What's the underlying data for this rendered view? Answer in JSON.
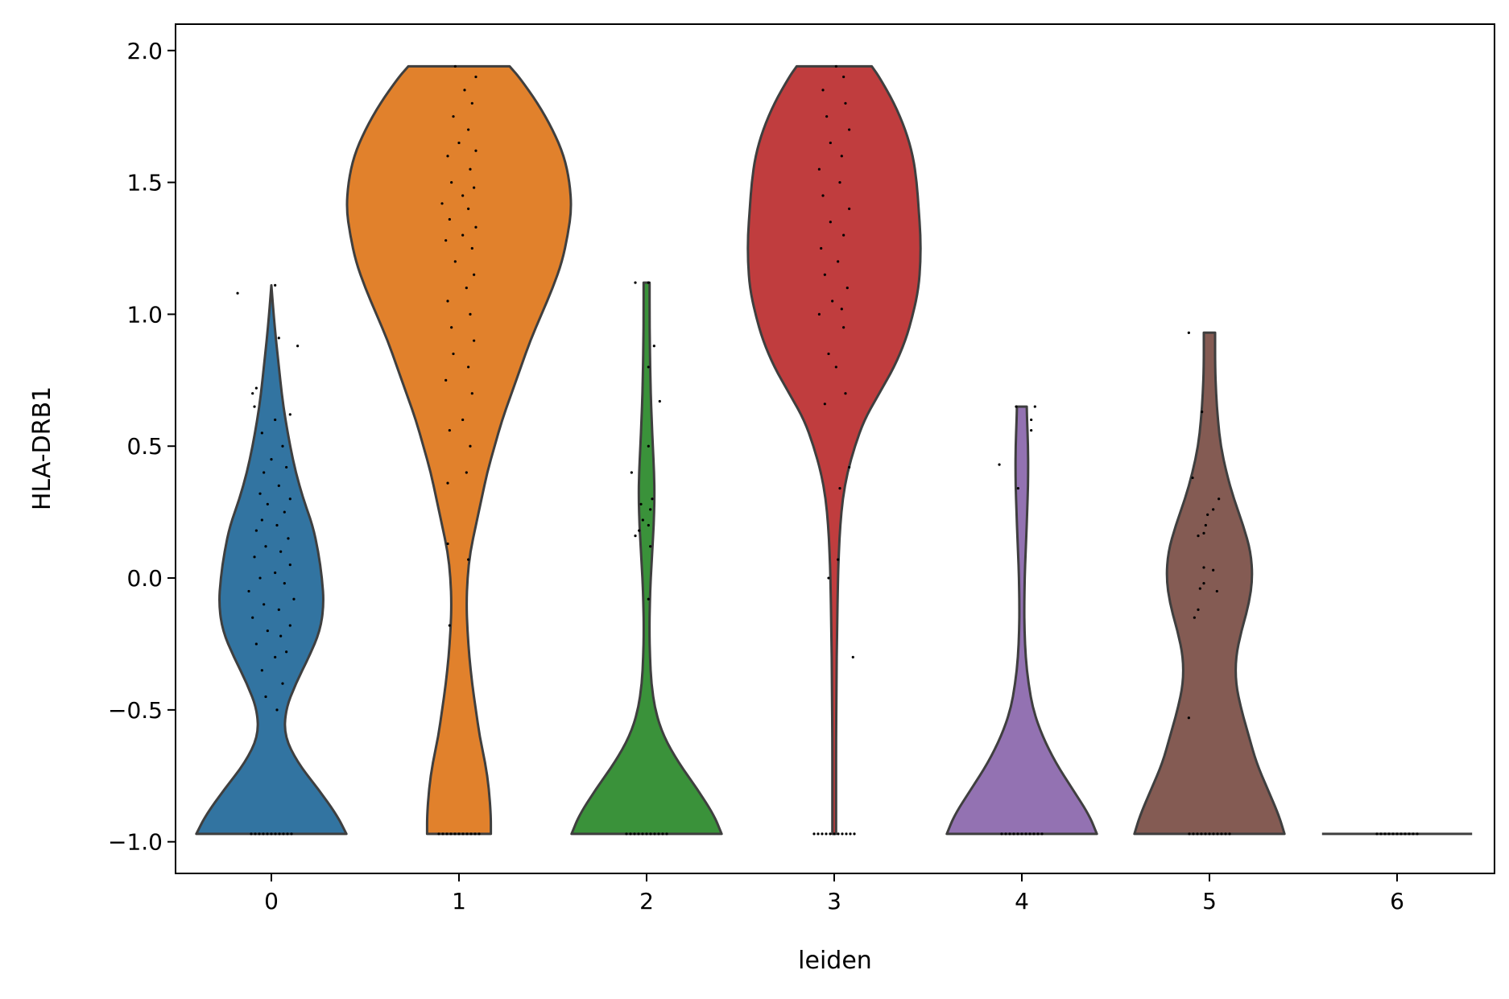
{
  "chart_data": {
    "type": "violin",
    "title": "",
    "xlabel": "leiden",
    "ylabel": "HLA-DRB1",
    "ylim": [
      -1.12,
      2.1
    ],
    "yticks": [
      2.0,
      1.5,
      1.0,
      0.5,
      0.0,
      -0.5,
      -1.0
    ],
    "ytick_labels": [
      "2.0",
      "1.5",
      "1.0",
      "0.5",
      "0.0",
      "−0.5",
      "−1.0"
    ],
    "categories": [
      "0",
      "1",
      "2",
      "3",
      "4",
      "5",
      "6"
    ],
    "grid": false,
    "series": [
      {
        "category": "0",
        "color": "#3274a1",
        "min": -0.97,
        "max": 1.11,
        "profile": [
          [
            -0.97,
            0.4
          ],
          [
            -0.9,
            0.35
          ],
          [
            -0.8,
            0.25
          ],
          [
            -0.7,
            0.14
          ],
          [
            -0.6,
            0.07
          ],
          [
            -0.5,
            0.075
          ],
          [
            -0.4,
            0.13
          ],
          [
            -0.3,
            0.2
          ],
          [
            -0.2,
            0.26
          ],
          [
            -0.1,
            0.28
          ],
          [
            0.0,
            0.27
          ],
          [
            0.1,
            0.25
          ],
          [
            0.2,
            0.22
          ],
          [
            0.3,
            0.17
          ],
          [
            0.4,
            0.13
          ],
          [
            0.5,
            0.1
          ],
          [
            0.6,
            0.075
          ],
          [
            0.7,
            0.055
          ],
          [
            0.8,
            0.04
          ],
          [
            0.9,
            0.025
          ],
          [
            1.0,
            0.012
          ],
          [
            1.11,
            0.0
          ]
        ],
        "points": [
          [
            -0.97,
            0.0
          ],
          [
            -0.5,
            0.03
          ],
          [
            -0.45,
            -0.03
          ],
          [
            -0.4,
            0.06
          ],
          [
            -0.35,
            -0.05
          ],
          [
            -0.3,
            0.02
          ],
          [
            -0.28,
            0.08
          ],
          [
            -0.25,
            -0.08
          ],
          [
            -0.22,
            0.05
          ],
          [
            -0.2,
            -0.02
          ],
          [
            -0.18,
            0.1
          ],
          [
            -0.15,
            -0.1
          ],
          [
            -0.12,
            0.04
          ],
          [
            -0.1,
            -0.04
          ],
          [
            -0.08,
            0.12
          ],
          [
            -0.05,
            -0.12
          ],
          [
            -0.02,
            0.07
          ],
          [
            0.0,
            -0.06
          ],
          [
            0.02,
            0.02
          ],
          [
            0.05,
            0.1
          ],
          [
            0.08,
            -0.09
          ],
          [
            0.1,
            0.05
          ],
          [
            0.12,
            -0.03
          ],
          [
            0.15,
            0.09
          ],
          [
            0.18,
            -0.08
          ],
          [
            0.2,
            0.03
          ],
          [
            0.22,
            -0.05
          ],
          [
            0.25,
            0.07
          ],
          [
            0.28,
            -0.02
          ],
          [
            0.3,
            0.1
          ],
          [
            0.32,
            -0.06
          ],
          [
            0.35,
            0.04
          ],
          [
            0.4,
            -0.04
          ],
          [
            0.42,
            0.08
          ],
          [
            0.45,
            0.0
          ],
          [
            0.5,
            0.06
          ],
          [
            0.55,
            -0.05
          ],
          [
            0.6,
            0.02
          ],
          [
            0.62,
            0.1
          ],
          [
            0.65,
            -0.09
          ],
          [
            0.7,
            -0.1
          ],
          [
            0.72,
            -0.08
          ],
          [
            0.88,
            0.14
          ],
          [
            0.91,
            0.04
          ],
          [
            1.08,
            -0.18
          ],
          [
            1.11,
            0.02
          ]
        ]
      },
      {
        "category": "1",
        "color": "#e1812c",
        "min": -0.97,
        "max": 1.94,
        "profile": [
          [
            -0.97,
            0.17
          ],
          [
            -0.9,
            0.17
          ],
          [
            -0.8,
            0.16
          ],
          [
            -0.7,
            0.14
          ],
          [
            -0.6,
            0.11
          ],
          [
            -0.5,
            0.09
          ],
          [
            -0.4,
            0.07
          ],
          [
            -0.3,
            0.055
          ],
          [
            -0.2,
            0.045
          ],
          [
            -0.1,
            0.04
          ],
          [
            0.0,
            0.045
          ],
          [
            0.1,
            0.06
          ],
          [
            0.2,
            0.09
          ],
          [
            0.3,
            0.12
          ],
          [
            0.4,
            0.15
          ],
          [
            0.5,
            0.19
          ],
          [
            0.6,
            0.23
          ],
          [
            0.7,
            0.28
          ],
          [
            0.8,
            0.33
          ],
          [
            0.9,
            0.38
          ],
          [
            1.0,
            0.44
          ],
          [
            1.1,
            0.5
          ],
          [
            1.2,
            0.55
          ],
          [
            1.3,
            0.58
          ],
          [
            1.4,
            0.6
          ],
          [
            1.5,
            0.59
          ],
          [
            1.6,
            0.56
          ],
          [
            1.7,
            0.5
          ],
          [
            1.8,
            0.42
          ],
          [
            1.9,
            0.32
          ],
          [
            1.94,
            0.27
          ]
        ],
        "points": [
          [
            -0.97,
            0.0
          ],
          [
            -0.18,
            -0.05
          ],
          [
            0.07,
            0.05
          ],
          [
            0.13,
            -0.06
          ],
          [
            0.36,
            -0.06
          ],
          [
            0.4,
            0.04
          ],
          [
            0.5,
            0.06
          ],
          [
            0.56,
            -0.05
          ],
          [
            0.6,
            0.02
          ],
          [
            0.7,
            0.07
          ],
          [
            0.75,
            -0.07
          ],
          [
            0.8,
            0.05
          ],
          [
            0.85,
            -0.03
          ],
          [
            0.9,
            0.08
          ],
          [
            0.95,
            -0.04
          ],
          [
            1.0,
            0.06
          ],
          [
            1.05,
            -0.06
          ],
          [
            1.1,
            0.04
          ],
          [
            1.15,
            0.08
          ],
          [
            1.2,
            -0.02
          ],
          [
            1.25,
            0.07
          ],
          [
            1.28,
            -0.07
          ],
          [
            1.3,
            0.02
          ],
          [
            1.33,
            0.09
          ],
          [
            1.36,
            -0.05
          ],
          [
            1.4,
            0.05
          ],
          [
            1.42,
            -0.09
          ],
          [
            1.45,
            0.02
          ],
          [
            1.48,
            0.08
          ],
          [
            1.5,
            -0.04
          ],
          [
            1.55,
            0.06
          ],
          [
            1.6,
            -0.06
          ],
          [
            1.62,
            0.09
          ],
          [
            1.65,
            0.0
          ],
          [
            1.7,
            0.05
          ],
          [
            1.75,
            -0.03
          ],
          [
            1.8,
            0.07
          ],
          [
            1.85,
            0.03
          ],
          [
            1.9,
            0.09
          ],
          [
            1.94,
            -0.02
          ]
        ]
      },
      {
        "category": "2",
        "color": "#3a923a",
        "min": -0.97,
        "max": 1.12,
        "profile": [
          [
            -0.97,
            0.4
          ],
          [
            -0.9,
            0.36
          ],
          [
            -0.8,
            0.27
          ],
          [
            -0.7,
            0.17
          ],
          [
            -0.6,
            0.09
          ],
          [
            -0.5,
            0.045
          ],
          [
            -0.4,
            0.025
          ],
          [
            -0.3,
            0.018
          ],
          [
            -0.2,
            0.015
          ],
          [
            -0.1,
            0.017
          ],
          [
            0.0,
            0.022
          ],
          [
            0.1,
            0.03
          ],
          [
            0.2,
            0.038
          ],
          [
            0.3,
            0.042
          ],
          [
            0.4,
            0.04
          ],
          [
            0.5,
            0.033
          ],
          [
            0.6,
            0.027
          ],
          [
            0.7,
            0.022
          ],
          [
            0.8,
            0.019
          ],
          [
            0.9,
            0.017
          ],
          [
            1.0,
            0.016
          ],
          [
            1.12,
            0.016
          ]
        ],
        "points": [
          [
            -0.97,
            0.0
          ],
          [
            -0.08,
            0.01
          ],
          [
            0.12,
            0.02
          ],
          [
            0.16,
            -0.06
          ],
          [
            0.18,
            -0.04
          ],
          [
            0.2,
            0.01
          ],
          [
            0.22,
            -0.02
          ],
          [
            0.26,
            0.02
          ],
          [
            0.28,
            -0.03
          ],
          [
            0.3,
            0.03
          ],
          [
            0.4,
            -0.08
          ],
          [
            0.5,
            0.01
          ],
          [
            0.67,
            0.07
          ],
          [
            0.8,
            0.01
          ],
          [
            0.88,
            0.04
          ],
          [
            1.12,
            -0.06
          ],
          [
            1.12,
            0.01
          ]
        ]
      },
      {
        "category": "3",
        "color": "#c03d3e",
        "min": -0.97,
        "max": 1.94,
        "profile": [
          [
            -0.97,
            0.01
          ],
          [
            -0.8,
            0.01
          ],
          [
            -0.6,
            0.01
          ],
          [
            -0.4,
            0.012
          ],
          [
            -0.2,
            0.015
          ],
          [
            0.0,
            0.02
          ],
          [
            0.1,
            0.025
          ],
          [
            0.2,
            0.032
          ],
          [
            0.3,
            0.045
          ],
          [
            0.4,
            0.07
          ],
          [
            0.5,
            0.11
          ],
          [
            0.6,
            0.16
          ],
          [
            0.7,
            0.24
          ],
          [
            0.8,
            0.32
          ],
          [
            0.9,
            0.38
          ],
          [
            1.0,
            0.42
          ],
          [
            1.1,
            0.45
          ],
          [
            1.2,
            0.46
          ],
          [
            1.3,
            0.46
          ],
          [
            1.4,
            0.45
          ],
          [
            1.5,
            0.44
          ],
          [
            1.6,
            0.42
          ],
          [
            1.7,
            0.38
          ],
          [
            1.8,
            0.32
          ],
          [
            1.9,
            0.24
          ],
          [
            1.94,
            0.2
          ]
        ],
        "points": [
          [
            -0.97,
            -0.02
          ],
          [
            -0.3,
            0.1
          ],
          [
            0.0,
            -0.03
          ],
          [
            0.07,
            0.02
          ],
          [
            0.34,
            0.03
          ],
          [
            0.42,
            0.08
          ],
          [
            0.66,
            -0.05
          ],
          [
            0.7,
            0.06
          ],
          [
            0.8,
            0.01
          ],
          [
            0.85,
            -0.03
          ],
          [
            0.95,
            0.05
          ],
          [
            1.0,
            -0.08
          ],
          [
            1.02,
            0.04
          ],
          [
            1.05,
            -0.01
          ],
          [
            1.1,
            0.07
          ],
          [
            1.15,
            -0.05
          ],
          [
            1.2,
            0.02
          ],
          [
            1.25,
            -0.07
          ],
          [
            1.3,
            0.05
          ],
          [
            1.35,
            -0.02
          ],
          [
            1.4,
            0.08
          ],
          [
            1.45,
            -0.06
          ],
          [
            1.5,
            0.03
          ],
          [
            1.55,
            -0.08
          ],
          [
            1.6,
            0.04
          ],
          [
            1.65,
            -0.02
          ],
          [
            1.7,
            0.08
          ],
          [
            1.75,
            -0.04
          ],
          [
            1.8,
            0.06
          ],
          [
            1.85,
            -0.06
          ],
          [
            1.9,
            0.05
          ],
          [
            1.94,
            0.01
          ]
        ]
      },
      {
        "category": "4",
        "color": "#9372b2",
        "min": -0.97,
        "max": 0.65,
        "profile": [
          [
            -0.97,
            0.4
          ],
          [
            -0.9,
            0.36
          ],
          [
            -0.8,
            0.27
          ],
          [
            -0.7,
            0.18
          ],
          [
            -0.6,
            0.11
          ],
          [
            -0.5,
            0.06
          ],
          [
            -0.4,
            0.035
          ],
          [
            -0.3,
            0.02
          ],
          [
            -0.2,
            0.014
          ],
          [
            -0.1,
            0.013
          ],
          [
            0.0,
            0.015
          ],
          [
            0.1,
            0.02
          ],
          [
            0.2,
            0.026
          ],
          [
            0.3,
            0.031
          ],
          [
            0.4,
            0.034
          ],
          [
            0.5,
            0.033
          ],
          [
            0.6,
            0.028
          ],
          [
            0.65,
            0.026
          ]
        ],
        "points": [
          [
            -0.97,
            0.0
          ],
          [
            0.34,
            -0.02
          ],
          [
            0.43,
            -0.12
          ],
          [
            0.56,
            0.05
          ],
          [
            0.6,
            0.05
          ],
          [
            0.65,
            -0.03
          ],
          [
            0.65,
            0.07
          ]
        ]
      },
      {
        "category": "5",
        "color": "#845b53",
        "min": -0.97,
        "max": 0.93,
        "profile": [
          [
            -0.97,
            0.4
          ],
          [
            -0.9,
            0.37
          ],
          [
            -0.8,
            0.31
          ],
          [
            -0.7,
            0.25
          ],
          [
            -0.6,
            0.21
          ],
          [
            -0.5,
            0.17
          ],
          [
            -0.4,
            0.14
          ],
          [
            -0.3,
            0.14
          ],
          [
            -0.2,
            0.17
          ],
          [
            -0.1,
            0.21
          ],
          [
            0.0,
            0.23
          ],
          [
            0.1,
            0.22
          ],
          [
            0.2,
            0.18
          ],
          [
            0.3,
            0.13
          ],
          [
            0.4,
            0.09
          ],
          [
            0.5,
            0.06
          ],
          [
            0.6,
            0.045
          ],
          [
            0.7,
            0.035
          ],
          [
            0.8,
            0.03
          ],
          [
            0.93,
            0.03
          ]
        ],
        "points": [
          [
            -0.97,
            0.0
          ],
          [
            -0.53,
            -0.11
          ],
          [
            -0.15,
            -0.08
          ],
          [
            -0.12,
            -0.06
          ],
          [
            -0.05,
            0.04
          ],
          [
            -0.04,
            -0.05
          ],
          [
            -0.02,
            -0.03
          ],
          [
            0.03,
            0.02
          ],
          [
            0.04,
            -0.03
          ],
          [
            0.16,
            -0.06
          ],
          [
            0.17,
            -0.03
          ],
          [
            0.2,
            -0.02
          ],
          [
            0.24,
            -0.01
          ],
          [
            0.26,
            0.02
          ],
          [
            0.3,
            0.05
          ],
          [
            0.38,
            -0.09
          ],
          [
            0.63,
            -0.04
          ],
          [
            0.93,
            -0.11
          ]
        ]
      },
      {
        "category": "6",
        "color": "#6d6d6d",
        "min": -0.97,
        "max": -0.97,
        "profile": [
          [
            -0.97,
            0.4
          ]
        ],
        "points": [
          [
            -0.97,
            -0.02
          ]
        ]
      }
    ]
  }
}
